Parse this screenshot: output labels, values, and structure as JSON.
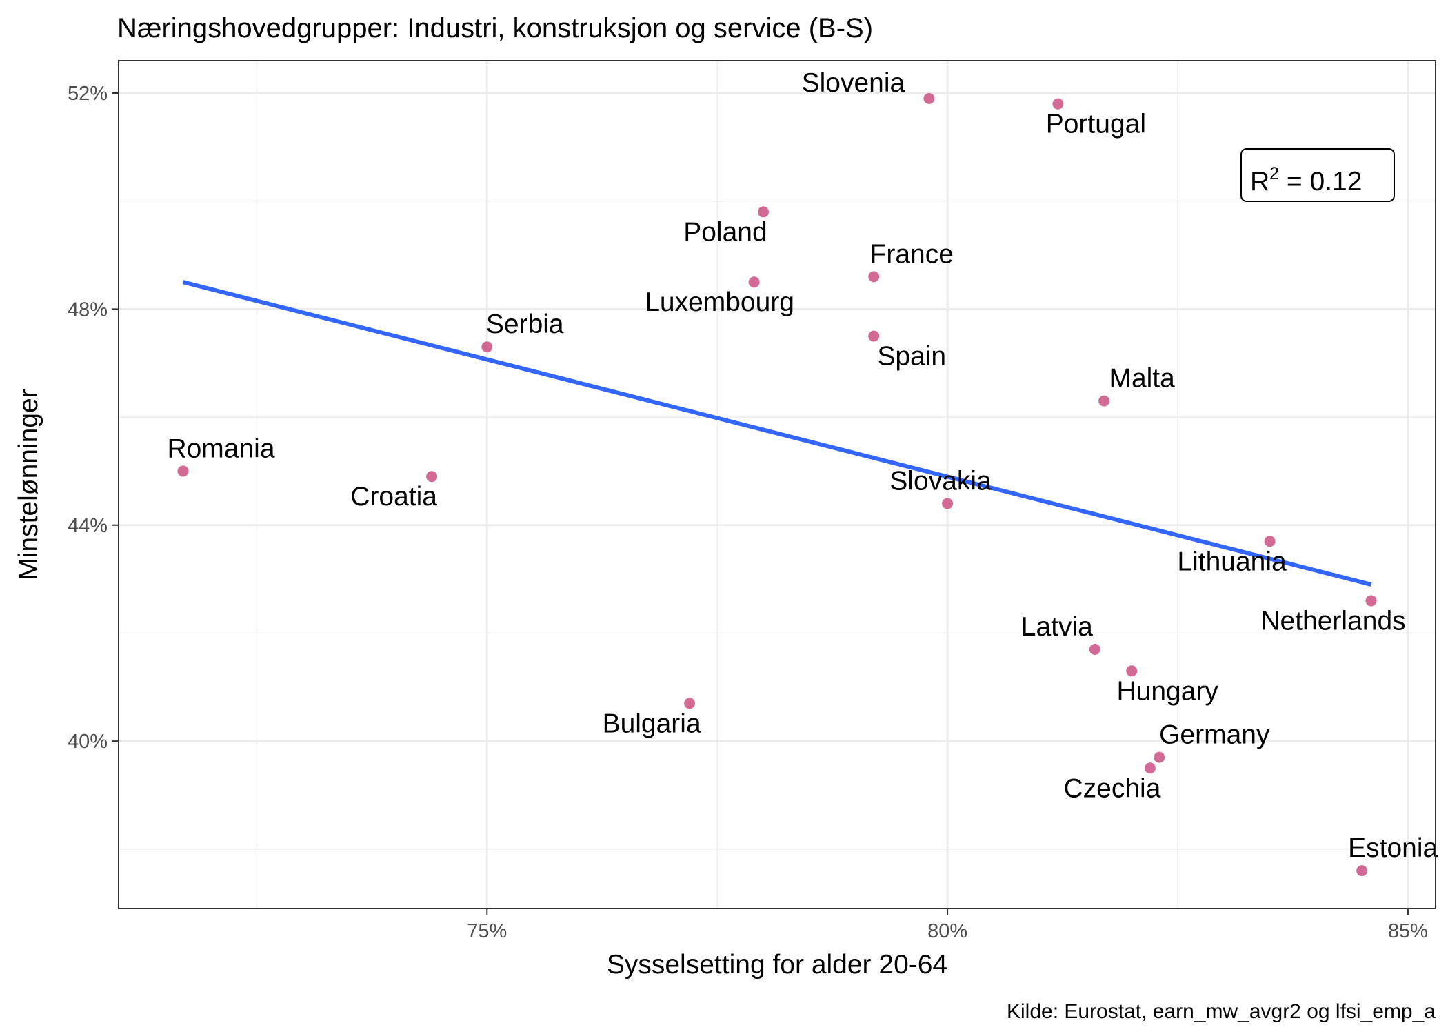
{
  "chart_data": {
    "type": "scatter",
    "title": "Næringshovedgrupper: Industri, konstruksjon og service (B-S)",
    "xlabel": "Sysselsetting for alder 20-64",
    "ylabel": "Minstelønninger",
    "caption": "Kilde: Eurostat, earn_mw_avgr2 og lfsi_emp_a",
    "xlim": [
      71.0,
      85.3
    ],
    "ylim": [
      36.9,
      52.6
    ],
    "x_ticks": [
      75,
      80,
      85
    ],
    "x_tick_labels": [
      "75%",
      "80%",
      "85%"
    ],
    "y_ticks": [
      40,
      44,
      48,
      52
    ],
    "y_tick_labels": [
      "40%",
      "44%",
      "48%",
      "52%"
    ],
    "grid": true,
    "point_color": "#d16b95",
    "line_color": "#3366ff",
    "annotation": {
      "base": "R",
      "sup": "2",
      "rest": " = 0.12"
    },
    "trend_line": {
      "x": [
        71.7,
        84.6
      ],
      "y": [
        48.5,
        42.9
      ]
    },
    "points": [
      {
        "label": "Slovenia",
        "x": 79.8,
        "y": 51.9
      },
      {
        "label": "Portugal",
        "x": 81.2,
        "y": 51.8
      },
      {
        "label": "Poland",
        "x": 78.0,
        "y": 49.8
      },
      {
        "label": "France",
        "x": 79.2,
        "y": 48.6
      },
      {
        "label": "Luxembourg",
        "x": 77.9,
        "y": 48.5
      },
      {
        "label": "Spain",
        "x": 79.2,
        "y": 47.5
      },
      {
        "label": "Serbia",
        "x": 75.0,
        "y": 47.3
      },
      {
        "label": "Malta",
        "x": 81.7,
        "y": 46.3
      },
      {
        "label": "Romania",
        "x": 71.7,
        "y": 45.0
      },
      {
        "label": "Croatia",
        "x": 74.4,
        "y": 44.9
      },
      {
        "label": "Slovakia",
        "x": 80.0,
        "y": 44.4
      },
      {
        "label": "Lithuania",
        "x": 83.5,
        "y": 43.7
      },
      {
        "label": "Netherlands",
        "x": 84.6,
        "y": 42.6
      },
      {
        "label": "Latvia",
        "x": 81.6,
        "y": 41.7
      },
      {
        "label": "Hungary",
        "x": 82.0,
        "y": 41.3
      },
      {
        "label": "Bulgaria",
        "x": 77.2,
        "y": 40.7
      },
      {
        "label": "Germany",
        "x": 82.3,
        "y": 39.7
      },
      {
        "label": "Czechia",
        "x": 82.2,
        "y": 39.5
      },
      {
        "label": "Estonia",
        "x": 84.5,
        "y": 37.6
      }
    ]
  }
}
